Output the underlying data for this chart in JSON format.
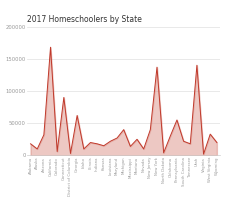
{
  "title": "2017 Homeschoolers by State",
  "line_color": "#c0392b",
  "fill_color": "#d9857a",
  "background_color": "#ffffff",
  "states": [
    "Alabama",
    "Alaska",
    "Arizona",
    "California",
    "Colorado",
    "Connecticut",
    "District of Columbia",
    "Georgia",
    "Idaho",
    "Illinois",
    "Indiana",
    "Kansas",
    "Louisiana",
    "Maryland",
    "Michigan",
    "Mississippi",
    "Montana",
    "Nevada",
    "New Jersey",
    "New York",
    "North Dakota",
    "Oklahoma",
    "Pennsylvania",
    "South Carolina",
    "Tennessee",
    "Utah",
    "Virginia",
    "West Virginia",
    "Wyoming"
  ],
  "values": [
    18000,
    10000,
    32000,
    168000,
    6000,
    90000,
    3000,
    62000,
    10000,
    20000,
    18000,
    15000,
    22000,
    27000,
    40000,
    14000,
    25000,
    10000,
    40000,
    137000,
    4000,
    30000,
    55000,
    22000,
    18000,
    140000,
    2000,
    33000,
    20000
  ],
  "ylim": [
    0,
    200000
  ],
  "yticks": [
    0,
    50000,
    100000,
    150000,
    200000
  ],
  "ytick_labels": [
    "0",
    "50000",
    "100000",
    "150000",
    "200000"
  ],
  "title_fontsize": 5.5,
  "tick_fontsize": 3.8,
  "xtick_fontsize": 2.8
}
